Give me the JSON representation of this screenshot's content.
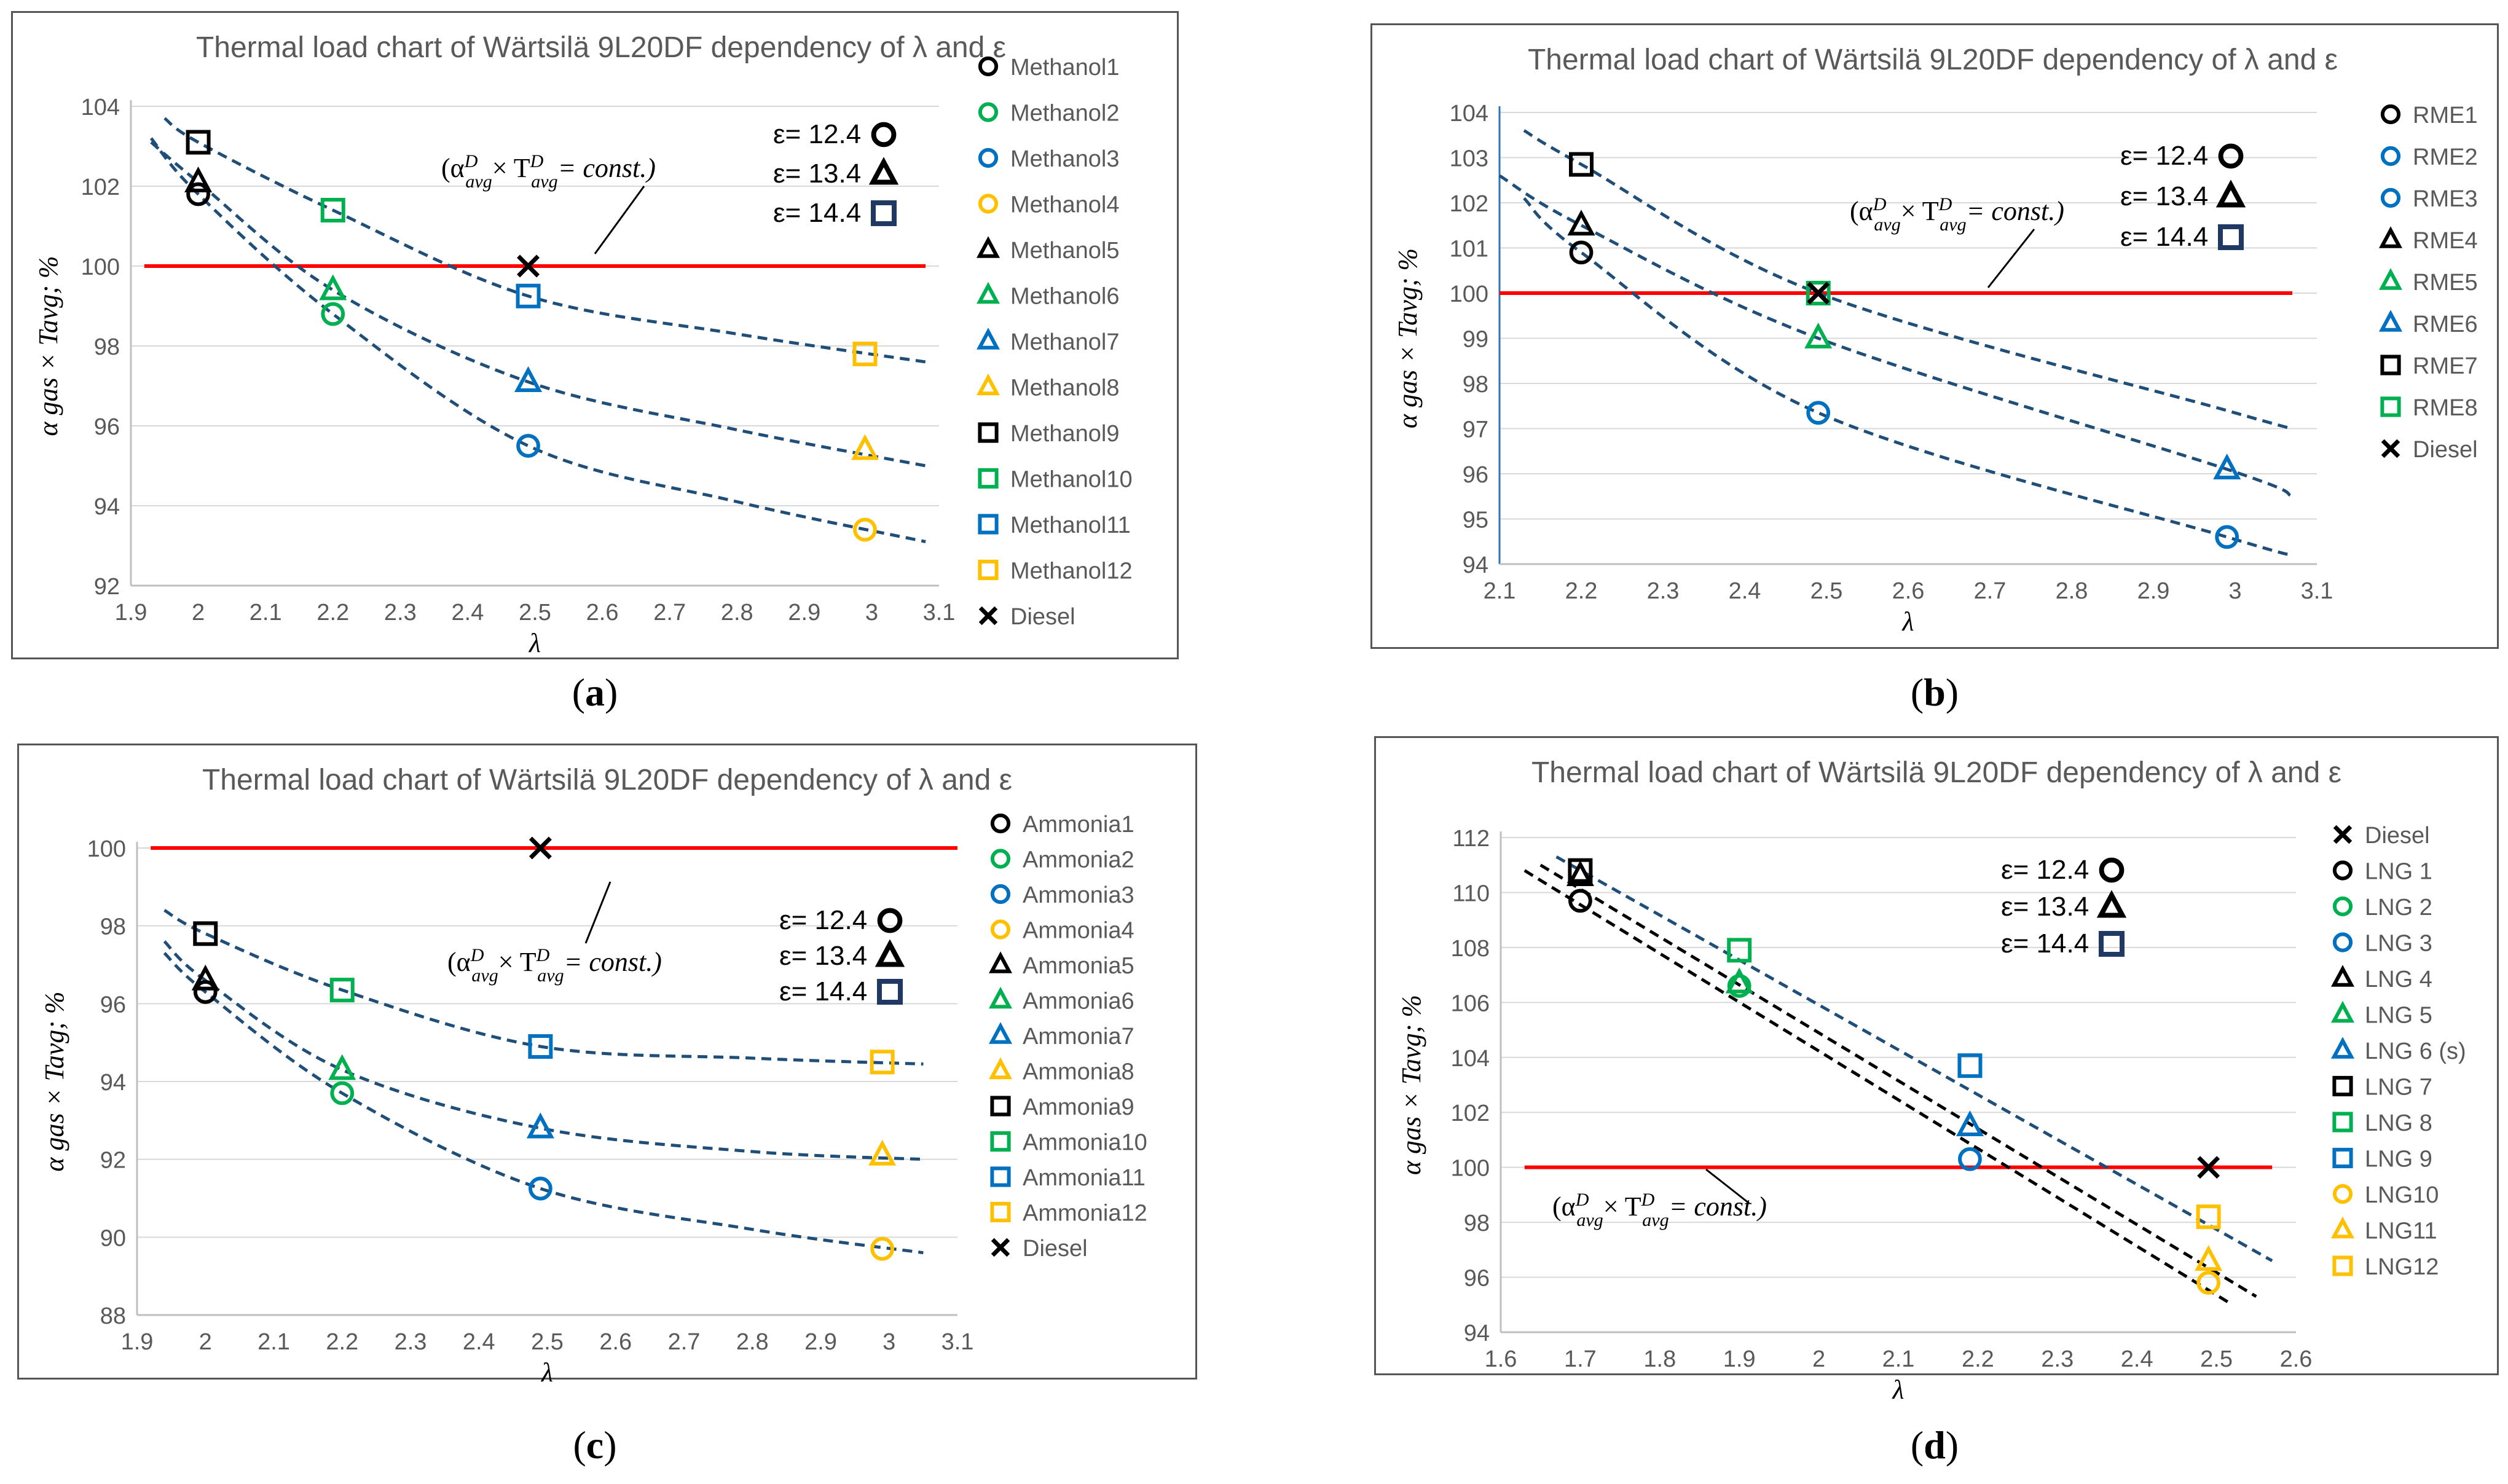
{
  "chart_data": [
    {
      "id": "a",
      "type": "scatter",
      "caption": "a",
      "title": "Thermal load chart of Wärtsilä 9L20DF dependency of λ and ε",
      "xlabel": "λ",
      "ylabel": "α gas × Tavg; %",
      "xlim": [
        1.9,
        3.1
      ],
      "ylim": [
        92,
        104
      ],
      "xticks": [
        "1.9",
        "2",
        "2.1",
        "2.2",
        "2.3",
        "2.4",
        "2.5",
        "2.6",
        "2.7",
        "2.8",
        "2.9",
        "3",
        "3.1"
      ],
      "yticks": [
        "92",
        "94",
        "96",
        "98",
        "100",
        "102",
        "104"
      ],
      "legend": [
        "Methanol1",
        "Methanol2",
        "Methanol3",
        "Methanol4",
        "Methanol5",
        "Methanol6",
        "Methanol7",
        "Methanol8",
        "Methanol9",
        "Methanol10",
        "Methanol11",
        "Methanol12",
        "Diesel"
      ],
      "legend_markers": [
        [
          "circle",
          "#000000"
        ],
        [
          "circle",
          "#00b050"
        ],
        [
          "circle",
          "#0070c0"
        ],
        [
          "circle",
          "#ffc000"
        ],
        [
          "triangle",
          "#000000"
        ],
        [
          "triangle",
          "#00b050"
        ],
        [
          "triangle",
          "#0070c0"
        ],
        [
          "triangle",
          "#ffc000"
        ],
        [
          "square",
          "#000000"
        ],
        [
          "square",
          "#00b050"
        ],
        [
          "square",
          "#0070c0"
        ],
        [
          "square",
          "#ffc000"
        ],
        [
          "cross",
          "#000000"
        ]
      ],
      "points": [
        {
          "name": "Methanol1",
          "x": 2.0,
          "y": 101.8,
          "marker": "circle",
          "color": "#000000"
        },
        {
          "name": "Methanol2",
          "x": 2.2,
          "y": 98.8,
          "marker": "circle",
          "color": "#00b050"
        },
        {
          "name": "Methanol3",
          "x": 2.49,
          "y": 95.5,
          "marker": "circle",
          "color": "#0070c0"
        },
        {
          "name": "Methanol4",
          "x": 2.99,
          "y": 93.4,
          "marker": "circle",
          "color": "#ffc000"
        },
        {
          "name": "Methanol5",
          "x": 2.0,
          "y": 102.1,
          "marker": "triangle",
          "color": "#000000"
        },
        {
          "name": "Methanol6",
          "x": 2.2,
          "y": 99.4,
          "marker": "triangle",
          "color": "#00b050"
        },
        {
          "name": "Methanol7",
          "x": 2.49,
          "y": 97.1,
          "marker": "triangle",
          "color": "#0070c0"
        },
        {
          "name": "Methanol8",
          "x": 2.99,
          "y": 95.4,
          "marker": "triangle",
          "color": "#ffc000"
        },
        {
          "name": "Methanol9",
          "x": 2.0,
          "y": 103.1,
          "marker": "square",
          "color": "#000000"
        },
        {
          "name": "Methanol10",
          "x": 2.2,
          "y": 101.4,
          "marker": "square",
          "color": "#00b050"
        },
        {
          "name": "Methanol11",
          "x": 2.49,
          "y": 99.25,
          "marker": "square",
          "color": "#0070c0"
        },
        {
          "name": "Methanol12",
          "x": 2.99,
          "y": 97.8,
          "marker": "square",
          "color": "#ffc000"
        },
        {
          "name": "Diesel",
          "x": 2.49,
          "y": 100.0,
          "marker": "cross",
          "color": "#000000"
        }
      ],
      "trendlines": [
        [
          [
            1.93,
            103.2
          ],
          [
            2.0,
            101.8
          ],
          [
            2.2,
            98.8
          ],
          [
            2.49,
            95.5
          ],
          [
            2.8,
            94.1
          ],
          [
            3.08,
            93.1
          ]
        ],
        [
          [
            1.93,
            103.1
          ],
          [
            2.0,
            102.1
          ],
          [
            2.2,
            99.4
          ],
          [
            2.49,
            97.1
          ],
          [
            2.8,
            95.9
          ],
          [
            3.08,
            95.0
          ]
        ],
        [
          [
            1.95,
            103.7
          ],
          [
            2.0,
            103.1
          ],
          [
            2.2,
            101.4
          ],
          [
            2.49,
            99.25
          ],
          [
            2.8,
            98.3
          ],
          [
            3.08,
            97.6
          ]
        ]
      ],
      "reference_line": {
        "x1": 1.92,
        "x2": 3.08,
        "y": 100
      },
      "reference_label": "(α",
      "ref_label_sup": "D",
      "ref_label_sub": "avg",
      "ref_label_mid": "× T",
      "ref_label_end": "= const.)",
      "epsilon_labels": [
        "ε= 12.4",
        "ε= 13.4",
        "ε= 14.4"
      ]
    },
    {
      "id": "b",
      "type": "scatter",
      "caption": "b",
      "title": "Thermal load chart of Wärtsilä 9L20DF dependency of λ and ε",
      "xlabel": "λ",
      "ylabel": "α gas × Tavg; %",
      "xlim": [
        2.1,
        3.1
      ],
      "ylim": [
        94,
        104
      ],
      "xticks": [
        "2.1",
        "2.2",
        "2.3",
        "2.4",
        "2.5",
        "2.6",
        "2.7",
        "2.8",
        "2.9",
        "3",
        "3.1"
      ],
      "yticks": [
        "94",
        "95",
        "96",
        "97",
        "98",
        "99",
        "100",
        "101",
        "102",
        "103",
        "104"
      ],
      "legend": [
        "RME1",
        "RME2",
        "RME3",
        "RME4",
        "RME5",
        "RME6",
        "RME7",
        "RME8",
        "Diesel"
      ],
      "legend_markers": [
        [
          "circle",
          "#000000"
        ],
        [
          "circle",
          "#0070c0"
        ],
        [
          "circle",
          "#0070c0"
        ],
        [
          "triangle",
          "#000000"
        ],
        [
          "triangle",
          "#00b050"
        ],
        [
          "triangle",
          "#0070c0"
        ],
        [
          "square",
          "#000000"
        ],
        [
          "square",
          "#00b050"
        ],
        [
          "cross",
          "#000000"
        ]
      ],
      "points": [
        {
          "name": "RME1",
          "x": 2.2,
          "y": 100.9,
          "marker": "circle",
          "color": "#000000"
        },
        {
          "name": "RME2",
          "x": 2.49,
          "y": 97.35,
          "marker": "circle",
          "color": "#0070c0"
        },
        {
          "name": "RME3",
          "x": 2.99,
          "y": 94.6,
          "marker": "circle",
          "color": "#0070c0"
        },
        {
          "name": "RME4",
          "x": 2.2,
          "y": 101.5,
          "marker": "triangle",
          "color": "#000000"
        },
        {
          "name": "RME5",
          "x": 2.49,
          "y": 99.0,
          "marker": "triangle",
          "color": "#00b050"
        },
        {
          "name": "RME6",
          "x": 2.99,
          "y": 96.1,
          "marker": "triangle",
          "color": "#0070c0"
        },
        {
          "name": "RME7",
          "x": 2.2,
          "y": 102.85,
          "marker": "square",
          "color": "#000000"
        },
        {
          "name": "RME8",
          "x": 2.49,
          "y": 100.0,
          "marker": "square",
          "color": "#00b050"
        },
        {
          "name": "Diesel",
          "x": 2.49,
          "y": 100.0,
          "marker": "cross",
          "color": "#000000"
        }
      ],
      "trendlines": [
        [
          [
            2.13,
            102.1
          ],
          [
            2.2,
            100.9
          ],
          [
            2.49,
            97.35
          ],
          [
            2.99,
            94.6
          ],
          [
            3.07,
            94.2
          ]
        ],
        [
          [
            2.1,
            102.6
          ],
          [
            2.2,
            101.5
          ],
          [
            2.49,
            99.0
          ],
          [
            2.99,
            96.1
          ],
          [
            3.07,
            95.5
          ]
        ],
        [
          [
            2.13,
            103.6
          ],
          [
            2.2,
            102.85
          ],
          [
            2.49,
            100.0
          ],
          [
            2.99,
            97.4
          ],
          [
            3.07,
            97.0
          ]
        ]
      ],
      "reference_line": {
        "x1": 2.1,
        "x2": 3.07,
        "y": 100
      },
      "reference_label": "(α",
      "ref_label_sup": "D",
      "ref_label_sub": "avg",
      "ref_label_mid": "× T",
      "ref_label_end": "= const.)",
      "epsilon_labels": [
        "ε= 12.4",
        "ε= 13.4",
        "ε= 14.4"
      ]
    },
    {
      "id": "c",
      "type": "scatter",
      "caption": "c",
      "title": "Thermal load chart of Wärtsilä 9L20DF dependency of λ and ε",
      "xlabel": "λ",
      "ylabel": "α gas × Tavg; %",
      "xlim": [
        1.9,
        3.1
      ],
      "ylim": [
        88,
        100
      ],
      "xticks": [
        "1.9",
        "2",
        "2.1",
        "2.2",
        "2.3",
        "2.4",
        "2.5",
        "2.6",
        "2.7",
        "2.8",
        "2.9",
        "3",
        "3.1"
      ],
      "yticks": [
        "88",
        "90",
        "92",
        "94",
        "96",
        "98",
        "100"
      ],
      "legend": [
        "Ammonia1",
        "Ammonia2",
        "Ammonia3",
        "Ammonia4",
        "Ammonia5",
        "Ammonia6",
        "Ammonia7",
        "Ammonia8",
        "Ammonia9",
        "Ammonia10",
        "Ammonia11",
        "Ammonia12",
        "Diesel"
      ],
      "legend_markers": [
        [
          "circle",
          "#000000"
        ],
        [
          "circle",
          "#00b050"
        ],
        [
          "circle",
          "#0070c0"
        ],
        [
          "circle",
          "#ffc000"
        ],
        [
          "triangle",
          "#000000"
        ],
        [
          "triangle",
          "#00b050"
        ],
        [
          "triangle",
          "#0070c0"
        ],
        [
          "triangle",
          "#ffc000"
        ],
        [
          "square",
          "#000000"
        ],
        [
          "square",
          "#00b050"
        ],
        [
          "square",
          "#0070c0"
        ],
        [
          "square",
          "#ffc000"
        ],
        [
          "cross",
          "#000000"
        ]
      ],
      "points": [
        {
          "name": "Ammonia1",
          "x": 2.0,
          "y": 96.3,
          "marker": "circle",
          "color": "#000000"
        },
        {
          "name": "Ammonia2",
          "x": 2.2,
          "y": 93.7,
          "marker": "circle",
          "color": "#00b050"
        },
        {
          "name": "Ammonia3",
          "x": 2.49,
          "y": 91.25,
          "marker": "circle",
          "color": "#0070c0"
        },
        {
          "name": "Ammonia4",
          "x": 2.99,
          "y": 89.7,
          "marker": "circle",
          "color": "#ffc000"
        },
        {
          "name": "Ammonia5",
          "x": 2.0,
          "y": 96.6,
          "marker": "triangle",
          "color": "#000000"
        },
        {
          "name": "Ammonia6",
          "x": 2.2,
          "y": 94.3,
          "marker": "triangle",
          "color": "#00b050"
        },
        {
          "name": "Ammonia7",
          "x": 2.49,
          "y": 92.8,
          "marker": "triangle",
          "color": "#0070c0"
        },
        {
          "name": "Ammonia8",
          "x": 2.99,
          "y": 92.1,
          "marker": "triangle",
          "color": "#ffc000"
        },
        {
          "name": "Ammonia9",
          "x": 2.0,
          "y": 97.8,
          "marker": "square",
          "color": "#000000"
        },
        {
          "name": "Ammonia10",
          "x": 2.2,
          "y": 96.35,
          "marker": "square",
          "color": "#00b050"
        },
        {
          "name": "Ammonia11",
          "x": 2.49,
          "y": 94.9,
          "marker": "square",
          "color": "#0070c0"
        },
        {
          "name": "Ammonia12",
          "x": 2.99,
          "y": 94.5,
          "marker": "square",
          "color": "#ffc000"
        },
        {
          "name": "Diesel",
          "x": 2.49,
          "y": 100.0,
          "marker": "cross",
          "color": "#000000"
        }
      ],
      "trendlines": [
        [
          [
            1.94,
            97.3
          ],
          [
            2.0,
            96.3
          ],
          [
            2.2,
            93.7
          ],
          [
            2.49,
            91.25
          ],
          [
            2.8,
            90.2
          ],
          [
            3.05,
            89.6
          ]
        ],
        [
          [
            1.94,
            97.6
          ],
          [
            2.0,
            96.6
          ],
          [
            2.2,
            94.3
          ],
          [
            2.49,
            92.8
          ],
          [
            2.8,
            92.2
          ],
          [
            3.05,
            92.0
          ]
        ],
        [
          [
            1.94,
            98.4
          ],
          [
            2.0,
            97.8
          ],
          [
            2.2,
            96.35
          ],
          [
            2.49,
            94.9
          ],
          [
            2.8,
            94.6
          ],
          [
            3.05,
            94.45
          ]
        ]
      ],
      "reference_line": {
        "x1": 1.92,
        "x2": 3.1,
        "y": 100
      },
      "reference_label": "(α",
      "ref_label_sup": "D",
      "ref_label_sub": "avg",
      "ref_label_mid": "× T",
      "ref_label_end": "= const.)",
      "epsilon_labels": [
        "ε= 12.4",
        "ε= 13.4",
        "ε= 14.4"
      ]
    },
    {
      "id": "d",
      "type": "scatter",
      "caption": "d",
      "title": "Thermal load chart of Wärtsilä 9L20DF dependency of λ and ε",
      "xlabel": "λ",
      "ylabel": "α gas × Tavg; %",
      "xlim": [
        1.6,
        2.6
      ],
      "ylim": [
        94,
        112
      ],
      "xticks": [
        "1.6",
        "1.7",
        "1.8",
        "1.9",
        "2",
        "2.1",
        "2.2",
        "2.3",
        "2.4",
        "2.5",
        "2.6"
      ],
      "yticks": [
        "94",
        "96",
        "98",
        "100",
        "102",
        "104",
        "106",
        "108",
        "110",
        "112"
      ],
      "legend": [
        "Diesel",
        "LNG 1",
        "LNG 2",
        "LNG 3",
        "LNG 4",
        "LNG 5",
        "LNG 6 (s)",
        "LNG 7",
        "LNG 8",
        "LNG 9",
        "LNG10",
        "LNG11",
        "LNG12"
      ],
      "legend_markers": [
        [
          "cross",
          "#000000"
        ],
        [
          "circle",
          "#000000"
        ],
        [
          "circle",
          "#00b050"
        ],
        [
          "circle",
          "#0070c0"
        ],
        [
          "triangle",
          "#000000"
        ],
        [
          "triangle",
          "#00b050"
        ],
        [
          "triangle",
          "#0070c0"
        ],
        [
          "square",
          "#000000"
        ],
        [
          "square",
          "#00b050"
        ],
        [
          "square",
          "#0070c0"
        ],
        [
          "circle",
          "#ffc000"
        ],
        [
          "triangle",
          "#ffc000"
        ],
        [
          "square",
          "#ffc000"
        ]
      ],
      "points": [
        {
          "name": "Diesel",
          "x": 2.49,
          "y": 100.0,
          "marker": "cross",
          "color": "#000000"
        },
        {
          "name": "LNG 1",
          "x": 1.7,
          "y": 109.7,
          "marker": "circle",
          "color": "#000000"
        },
        {
          "name": "LNG 2",
          "x": 1.9,
          "y": 106.6,
          "marker": "circle",
          "color": "#00b050"
        },
        {
          "name": "LNG 3",
          "x": 2.19,
          "y": 100.3,
          "marker": "circle",
          "color": "#0070c0"
        },
        {
          "name": "LNG 4",
          "x": 1.7,
          "y": 110.6,
          "marker": "triangle",
          "color": "#000000"
        },
        {
          "name": "LNG 5",
          "x": 1.9,
          "y": 106.7,
          "marker": "triangle",
          "color": "#00b050"
        },
        {
          "name": "LNG 6 (s)",
          "x": 2.19,
          "y": 101.5,
          "marker": "triangle",
          "color": "#0070c0"
        },
        {
          "name": "LNG 7",
          "x": 1.7,
          "y": 110.8,
          "marker": "square",
          "color": "#000000"
        },
        {
          "name": "LNG 8",
          "x": 1.9,
          "y": 107.9,
          "marker": "square",
          "color": "#00b050"
        },
        {
          "name": "LNG 9",
          "x": 2.19,
          "y": 103.7,
          "marker": "square",
          "color": "#0070c0"
        },
        {
          "name": "LNG10",
          "x": 2.49,
          "y": 95.8,
          "marker": "circle",
          "color": "#ffc000"
        },
        {
          "name": "LNG11",
          "x": 2.49,
          "y": 96.6,
          "marker": "triangle",
          "color": "#ffc000"
        },
        {
          "name": "LNG12",
          "x": 2.49,
          "y": 98.2,
          "marker": "square",
          "color": "#ffc000"
        }
      ],
      "trendlines": [
        [
          [
            1.63,
            110.8
          ],
          [
            2.52,
            95.0
          ]
        ],
        [
          [
            1.65,
            111.0
          ],
          [
            2.55,
            95.3
          ]
        ],
        [
          [
            1.67,
            111.3
          ],
          [
            2.57,
            96.6
          ]
        ]
      ],
      "trend_colors": [
        "#000000",
        "#000000",
        "#1f4e79"
      ],
      "reference_line": {
        "x1": 1.63,
        "x2": 2.57,
        "y": 100
      },
      "reference_label": "(α",
      "ref_label_sup": "D",
      "ref_label_sub": "avg",
      "ref_label_mid": "× T",
      "ref_label_end": "= const.)",
      "epsilon_labels": [
        "ε= 12.4",
        "ε= 13.4",
        "ε= 14.4"
      ]
    }
  ]
}
